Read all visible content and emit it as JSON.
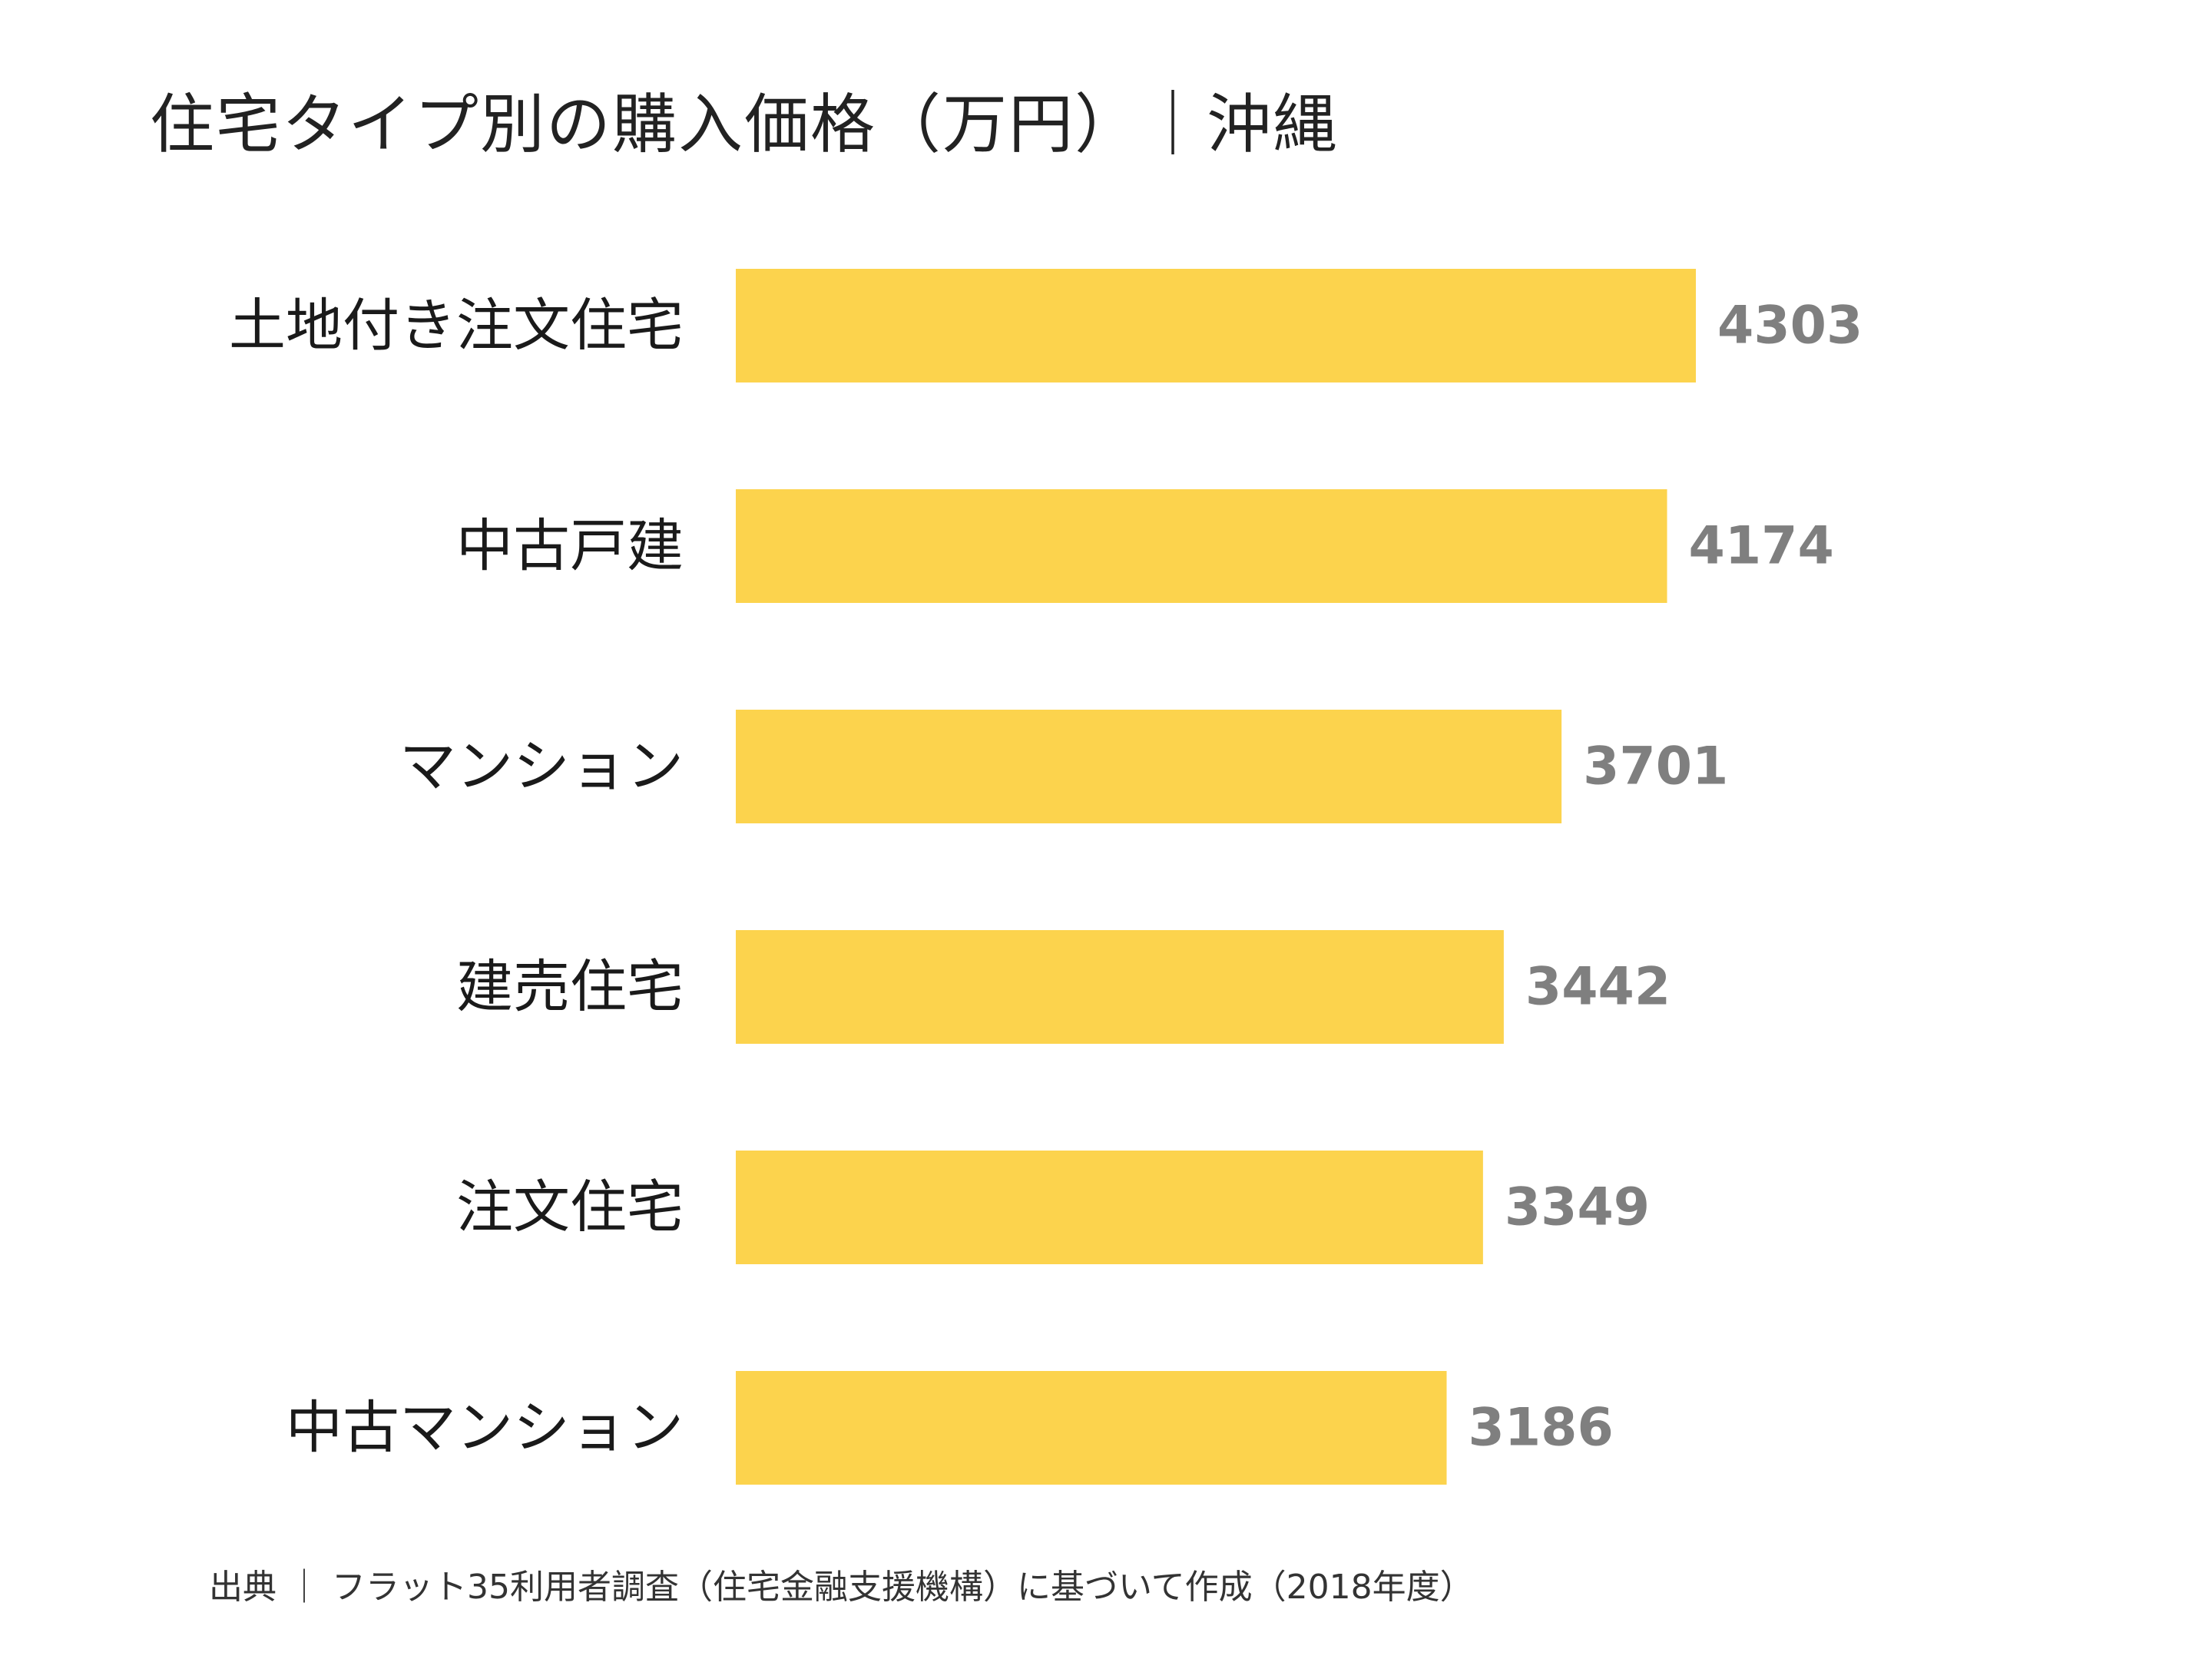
{
  "title": "住宅タイプ別の購入価格（万円）｜沖縄",
  "source": "出典 ｜ フラット35利用者調査（住宅金融支援機構）に基づいて作成（2018年度）",
  "colors": {
    "bar": "#FCD34D",
    "value_label": "#7F7F7F",
    "category_label": "#1A1A1A"
  },
  "chart_data": {
    "type": "bar",
    "orientation": "horizontal",
    "categories": [
      "土地付き注文住宅",
      "中古戸建",
      "マンション",
      "建売住宅",
      "注文住宅",
      "中古マンション"
    ],
    "values": [
      4303,
      4174,
      3701,
      3442,
      3349,
      3186
    ],
    "xlim": [
      0,
      4303
    ],
    "grid": false,
    "legend": "none"
  }
}
